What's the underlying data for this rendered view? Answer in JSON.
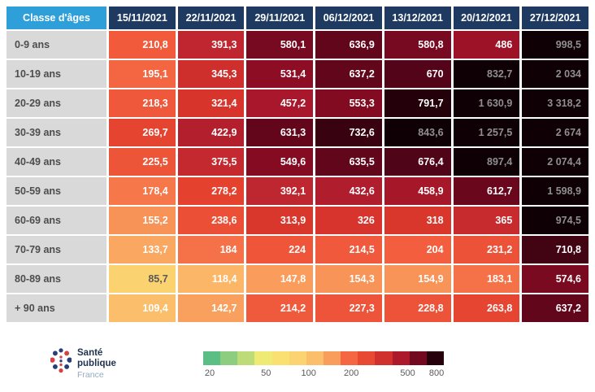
{
  "header": {
    "corner": "Classe d'âges",
    "dates": [
      "15/11/2021",
      "22/11/2021",
      "29/11/2021",
      "06/12/2021",
      "13/12/2021",
      "20/12/2021",
      "27/12/2021"
    ]
  },
  "rows": [
    {
      "label": "0-9 ans",
      "values": [
        "210,8",
        "391,3",
        "580,1",
        "636,9",
        "580,8",
        "486",
        "998,5"
      ]
    },
    {
      "label": "10-19 ans",
      "values": [
        "195,1",
        "345,3",
        "531,4",
        "637,2",
        "670",
        "832,7",
        "2 034"
      ]
    },
    {
      "label": "20-29 ans",
      "values": [
        "218,3",
        "321,4",
        "457,2",
        "553,3",
        "791,7",
        "1 630,9",
        "3 318,2"
      ]
    },
    {
      "label": "30-39 ans",
      "values": [
        "269,7",
        "422,9",
        "631,3",
        "732,6",
        "843,6",
        "1 257,5",
        "2 674"
      ]
    },
    {
      "label": "40-49 ans",
      "values": [
        "225,5",
        "375,5",
        "549,6",
        "635,5",
        "676,4",
        "897,4",
        "2 074,4"
      ]
    },
    {
      "label": "50-59 ans",
      "values": [
        "178,4",
        "278,2",
        "392,1",
        "432,6",
        "458,9",
        "612,7",
        "1 598,9"
      ]
    },
    {
      "label": "60-69 ans",
      "values": [
        "155,2",
        "238,6",
        "313,9",
        "326",
        "318",
        "365",
        "974,5"
      ]
    },
    {
      "label": "70-79 ans",
      "values": [
        "133,7",
        "184",
        "224",
        "214,5",
        "204",
        "231,2",
        "710,8"
      ]
    },
    {
      "label": "80-89 ans",
      "values": [
        "85,7",
        "118,4",
        "147,8",
        "154,3",
        "154,9",
        "183,1",
        "574,6"
      ]
    },
    {
      "label": "+ 90 ans",
      "values": [
        "109,4",
        "142,7",
        "214,2",
        "227,3",
        "228,8",
        "263,8",
        "637,2"
      ]
    }
  ],
  "legend": {
    "ticks": [
      "20",
      "50",
      "100",
      "200",
      "500",
      "800"
    ],
    "tick_values": [
      20,
      50,
      100,
      200,
      500,
      800
    ],
    "segments": 14
  },
  "logo": {
    "line1": "Santé",
    "line2": "publique",
    "line3": "France"
  },
  "colors": {
    "corner_bg": "#2e9fd8",
    "header_bg": "#1f3a60",
    "label_bg": "#d9d9d9",
    "label_text": "#4d4d4d",
    "scale": [
      [
        20,
        "#55bd86"
      ],
      [
        50,
        "#f7ec72"
      ],
      [
        100,
        "#fcca70"
      ],
      [
        150,
        "#f99a5b"
      ],
      [
        200,
        "#f3603f"
      ],
      [
        300,
        "#e03a2b"
      ],
      [
        400,
        "#bc2430"
      ],
      [
        500,
        "#9a0f27"
      ],
      [
        650,
        "#5c051a"
      ],
      [
        800,
        "#200009"
      ]
    ],
    "over_max": "#0e0005",
    "text_light": "#ffffff",
    "text_dark": "#595959",
    "text_over_max": "#8f8f8f"
  },
  "chart_data": {
    "type": "heatmap",
    "columns": [
      "15/11/2021",
      "22/11/2021",
      "29/11/2021",
      "06/12/2021",
      "13/12/2021",
      "20/12/2021",
      "27/12/2021"
    ],
    "rows": [
      "0-9 ans",
      "10-19 ans",
      "20-29 ans",
      "30-39 ans",
      "40-49 ans",
      "50-59 ans",
      "60-69 ans",
      "70-79 ans",
      "80-89 ans",
      "+ 90 ans"
    ],
    "row_axis_label": "Classe d'âges",
    "values": [
      [
        210.8,
        391.3,
        580.1,
        636.9,
        580.8,
        486,
        998.5
      ],
      [
        195.1,
        345.3,
        531.4,
        637.2,
        670,
        832.7,
        2034
      ],
      [
        218.3,
        321.4,
        457.2,
        553.3,
        791.7,
        1630.9,
        3318.2
      ],
      [
        269.7,
        422.9,
        631.3,
        732.6,
        843.6,
        1257.5,
        2674
      ],
      [
        225.5,
        375.5,
        549.6,
        635.5,
        676.4,
        897.4,
        2074.4
      ],
      [
        178.4,
        278.2,
        392.1,
        432.6,
        458.9,
        612.7,
        1598.9
      ],
      [
        155.2,
        238.6,
        313.9,
        326,
        318,
        365,
        974.5
      ],
      [
        133.7,
        184,
        224,
        214.5,
        204,
        231.2,
        710.8
      ],
      [
        85.7,
        118.4,
        147.8,
        154.3,
        154.9,
        183.1,
        574.6
      ],
      [
        109.4,
        142.7,
        214.2,
        227.3,
        228.8,
        263.8,
        637.2
      ]
    ],
    "legend_ticks": [
      20,
      50,
      100,
      200,
      500,
      800
    ],
    "legend_position": "bottom"
  }
}
